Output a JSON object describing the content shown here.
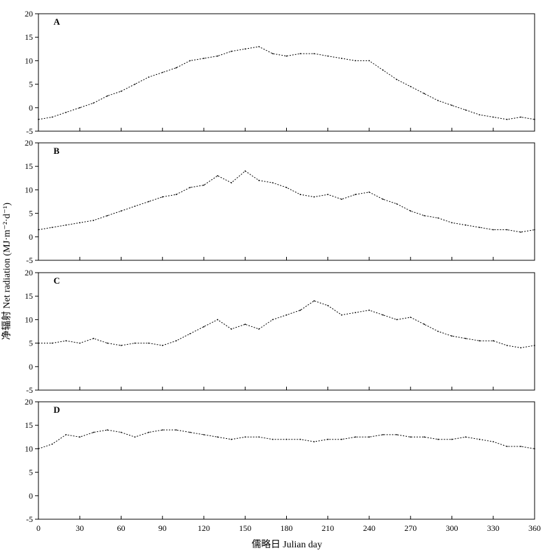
{
  "ylabel": "净辐射 Net radiation (MJ·m⁻²·d⁻¹)",
  "xlabel": "儒略日 Julian day",
  "colors": {
    "line": "#000000",
    "frame": "#000000",
    "background": "#ffffff"
  },
  "chart_data": [
    {
      "type": "line",
      "panel_label": "A",
      "ylim": [
        -5,
        20
      ],
      "xlim": [
        0,
        360
      ],
      "yticks": [
        -5,
        0,
        5,
        10,
        15,
        20
      ],
      "xticks": [
        0,
        30,
        60,
        90,
        120,
        150,
        180,
        210,
        240,
        270,
        300,
        330,
        360
      ],
      "series": [
        {
          "x": [
            0,
            10,
            20,
            30,
            40,
            50,
            60,
            70,
            80,
            90,
            100,
            110,
            120,
            130,
            140,
            150,
            160,
            170,
            180,
            190,
            200,
            210,
            220,
            230,
            240,
            250,
            260,
            270,
            280,
            290,
            300,
            310,
            320,
            330,
            340,
            350,
            360
          ],
          "y": [
            -2.5,
            -2,
            -1,
            0,
            1,
            2.5,
            3.5,
            5,
            6.5,
            7.5,
            8.5,
            10,
            10.5,
            11,
            12,
            12.5,
            13,
            11.5,
            11,
            11.5,
            11.5,
            11,
            10.5,
            10,
            10,
            8,
            6,
            4.5,
            3,
            1.5,
            0.5,
            -0.5,
            -1.5,
            -2,
            -2.5,
            -2,
            -2.5
          ]
        }
      ]
    },
    {
      "type": "line",
      "panel_label": "B",
      "ylim": [
        -5,
        20
      ],
      "xlim": [
        0,
        360
      ],
      "yticks": [
        -5,
        0,
        5,
        10,
        15,
        20
      ],
      "xticks": [
        0,
        30,
        60,
        90,
        120,
        150,
        180,
        210,
        240,
        270,
        300,
        330,
        360
      ],
      "series": [
        {
          "x": [
            0,
            10,
            20,
            30,
            40,
            50,
            60,
            70,
            80,
            90,
            100,
            110,
            120,
            130,
            140,
            150,
            160,
            170,
            180,
            190,
            200,
            210,
            220,
            230,
            240,
            250,
            260,
            270,
            280,
            290,
            300,
            310,
            320,
            330,
            340,
            350,
            360
          ],
          "y": [
            1.5,
            2,
            2.5,
            3,
            3.5,
            4.5,
            5.5,
            6.5,
            7.5,
            8.5,
            9,
            10.5,
            11,
            13,
            11.5,
            14,
            12,
            11.5,
            10.5,
            9,
            8.5,
            9,
            8,
            9,
            9.5,
            8,
            7,
            5.5,
            4.5,
            4,
            3,
            2.5,
            2,
            1.5,
            1.5,
            1,
            1.5
          ]
        }
      ]
    },
    {
      "type": "line",
      "panel_label": "C",
      "ylim": [
        -5,
        20
      ],
      "xlim": [
        0,
        360
      ],
      "yticks": [
        -5,
        0,
        5,
        10,
        15,
        20
      ],
      "xticks": [
        0,
        30,
        60,
        90,
        120,
        150,
        180,
        210,
        240,
        270,
        300,
        330,
        360
      ],
      "series": [
        {
          "x": [
            0,
            10,
            20,
            30,
            40,
            50,
            60,
            70,
            80,
            90,
            100,
            110,
            120,
            130,
            140,
            150,
            160,
            170,
            180,
            190,
            200,
            210,
            220,
            230,
            240,
            250,
            260,
            270,
            280,
            290,
            300,
            310,
            320,
            330,
            340,
            350,
            360
          ],
          "y": [
            5,
            5,
            5.5,
            5,
            6,
            5,
            4.5,
            5,
            5,
            4.5,
            5.5,
            7,
            8.5,
            10,
            8,
            9,
            8,
            10,
            11,
            12,
            14,
            13,
            11,
            11.5,
            12,
            11,
            10,
            10.5,
            9,
            7.5,
            6.5,
            6,
            5.5,
            5.5,
            4.5,
            4,
            4.5
          ]
        }
      ]
    },
    {
      "type": "line",
      "panel_label": "D",
      "ylim": [
        -5,
        20
      ],
      "xlim": [
        0,
        360
      ],
      "yticks": [
        -5,
        0,
        5,
        10,
        15,
        20
      ],
      "xticks": [
        0,
        30,
        60,
        90,
        120,
        150,
        180,
        210,
        240,
        270,
        300,
        330,
        360
      ],
      "series": [
        {
          "x": [
            0,
            10,
            20,
            30,
            40,
            50,
            60,
            70,
            80,
            90,
            100,
            110,
            120,
            130,
            140,
            150,
            160,
            170,
            180,
            190,
            200,
            210,
            220,
            230,
            240,
            250,
            260,
            270,
            280,
            290,
            300,
            310,
            320,
            330,
            340,
            350,
            360
          ],
          "y": [
            10,
            11,
            13,
            12.5,
            13.5,
            14,
            13.5,
            12.5,
            13.5,
            14,
            14,
            13.5,
            13,
            12.5,
            12,
            12.5,
            12.5,
            12,
            12,
            12,
            11.5,
            12,
            12,
            12.5,
            12.5,
            13,
            13,
            12.5,
            12.5,
            12,
            12,
            12.5,
            12,
            11.5,
            10.5,
            10.5,
            10
          ]
        }
      ]
    }
  ]
}
